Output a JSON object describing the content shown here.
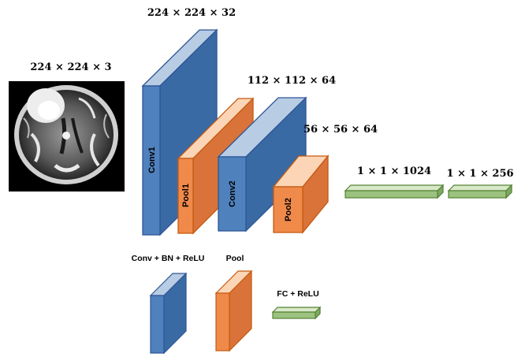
{
  "input": {
    "dims": "224 × 224 × 3",
    "image_alt": "brain MRI slice"
  },
  "blocks": {
    "conv1": {
      "label": "Conv1",
      "dims": "224 × 224 × 32"
    },
    "pool1": {
      "label": "Pool1",
      "dims": "112 × 112 × 64"
    },
    "conv2": {
      "label": "Conv2",
      "dims": ""
    },
    "pool2": {
      "label": "Pool2",
      "dims": "56 × 56 × 64"
    },
    "fc1": {
      "dims": "1 × 1 × 1024"
    },
    "fc2": {
      "dims": "1 × 1 × 256"
    }
  },
  "legend": {
    "conv": "Conv + BN + ReLU",
    "pool": "Pool",
    "fc": "FC + ReLU"
  },
  "colors": {
    "conv_front": "#4f81bd",
    "conv_top": "#b8cce4",
    "conv_side": "#3a6aa3",
    "conv_edge": "#2f5597",
    "pool_front": "#f08a4b",
    "pool_top": "#fbd5b5",
    "pool_side": "#d9733a",
    "pool_edge": "#c55a11",
    "fc_front": "#9bc27e",
    "fc_top": "#d8e9c8",
    "fc_edge": "#548235"
  }
}
